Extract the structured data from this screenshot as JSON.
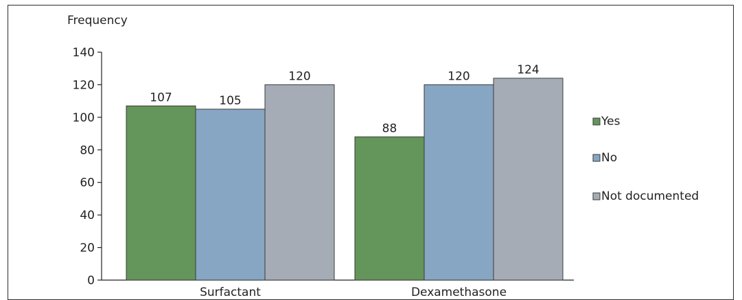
{
  "chart_data": {
    "type": "bar",
    "title": "",
    "ylabel": "Frequency",
    "xlabel": "",
    "categories": [
      "Surfactant",
      "Dexamethasone"
    ],
    "series": [
      {
        "name": "Yes",
        "values": [
          107,
          88
        ],
        "color": "#64955a"
      },
      {
        "name": "No",
        "values": [
          105,
          120
        ],
        "color": "#87a6c3"
      },
      {
        "name": "Not documented",
        "values": [
          120,
          124
        ],
        "color": "#a6acb6"
      }
    ],
    "y_ticks": [
      0,
      20,
      40,
      60,
      80,
      100,
      120,
      140
    ],
    "legend_position": "right",
    "grid": false
  }
}
